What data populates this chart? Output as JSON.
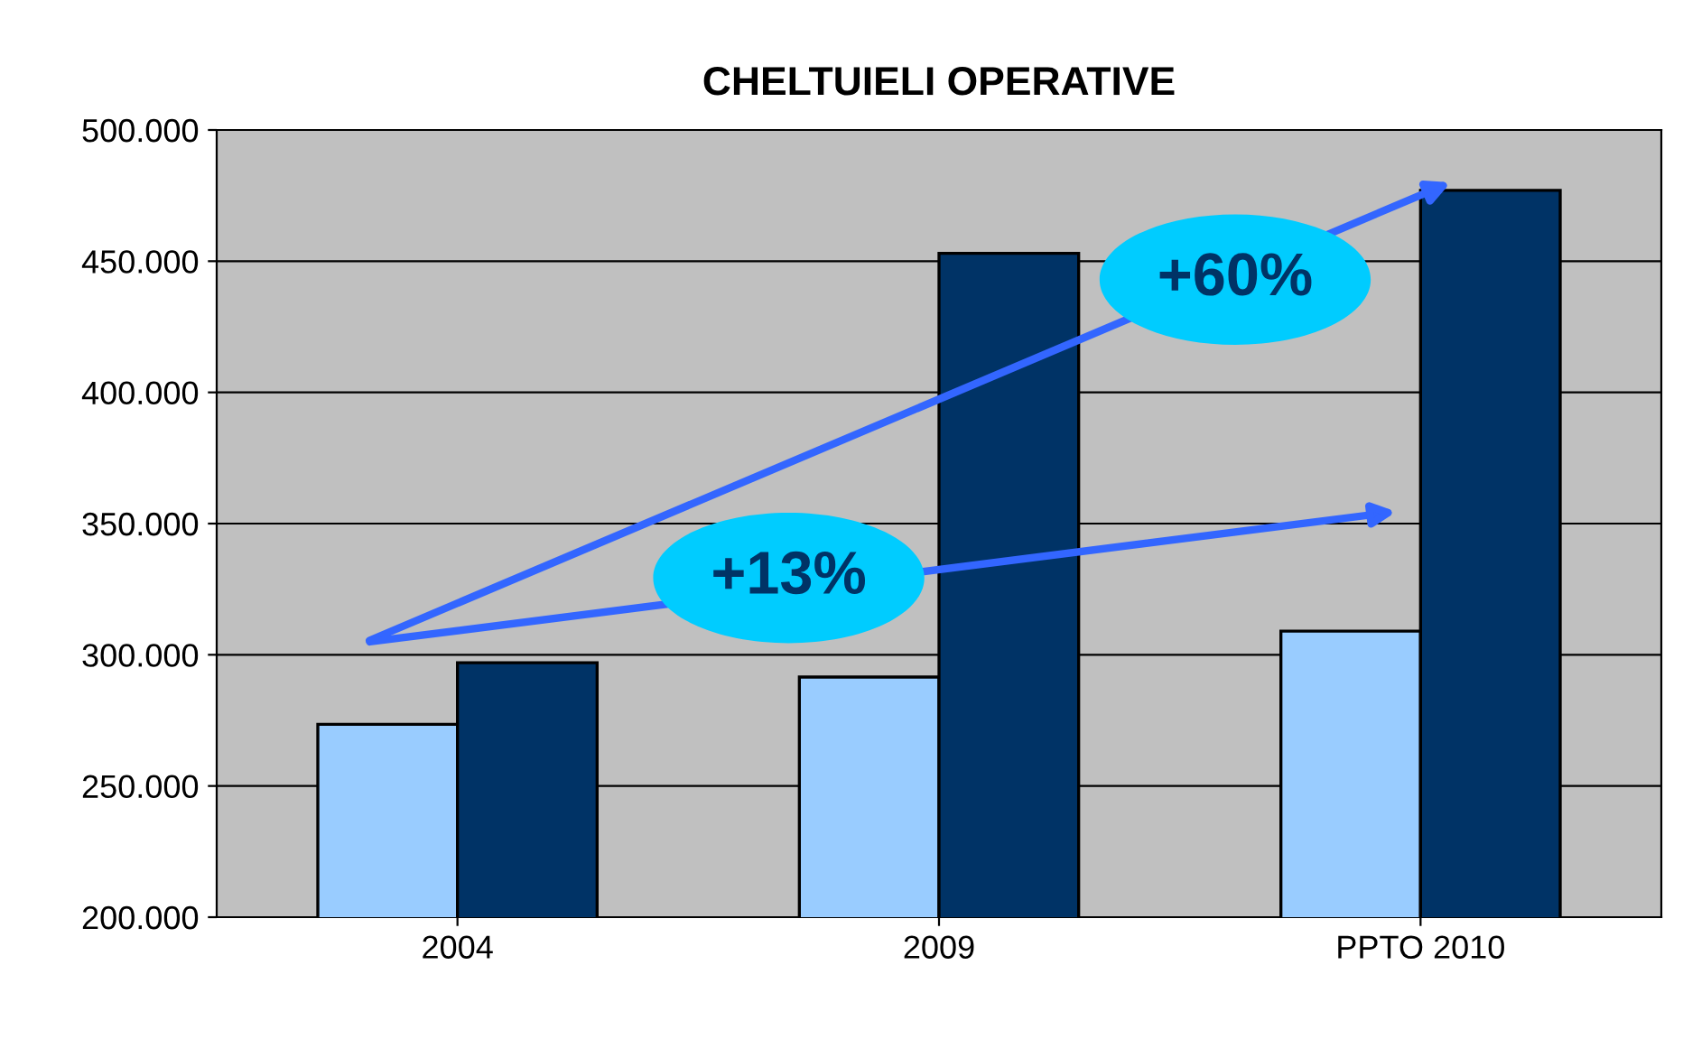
{
  "chart_data": {
    "type": "bar",
    "title": "CHELTUIELI OPERATIVE",
    "categories": [
      "2004",
      "2009",
      "PPTO 2010"
    ],
    "series": [
      {
        "color": "#99ccff",
        "values": [
          273500,
          291500,
          309000
        ]
      },
      {
        "color": "#003366",
        "values": [
          297000,
          453000,
          477000
        ]
      }
    ],
    "ylim": [
      200000,
      500000
    ],
    "yticks": [
      {
        "value": 200000,
        "label": "200.000"
      },
      {
        "value": 250000,
        "label": "250.000"
      },
      {
        "value": 300000,
        "label": "300.000"
      },
      {
        "value": 350000,
        "label": "350.000"
      },
      {
        "value": 400000,
        "label": "400.000"
      },
      {
        "value": 450000,
        "label": "450.000"
      },
      {
        "value": 500000,
        "label": "500.000"
      }
    ],
    "grid": "y",
    "annotations": [
      "+60%",
      "+13%"
    ]
  }
}
